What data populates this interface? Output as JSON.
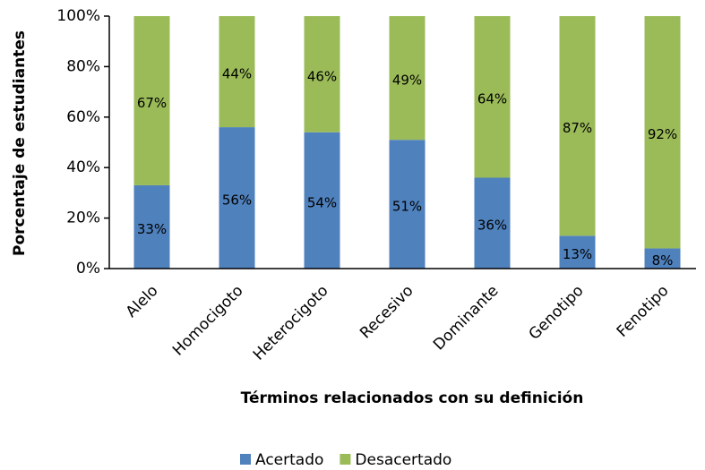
{
  "chart_data": {
    "type": "stacked_bar",
    "x_label": "Términos relacionados con su definición",
    "y_label": "Porcentaje de estudiantes",
    "categories": [
      "Alelo",
      "Homocigoto",
      "Heterocigoto",
      "Recesivo",
      "Dominante",
      "Genotipo",
      "Fenotipo"
    ],
    "series": [
      {
        "name": "Acertado",
        "color": "#4f81bd",
        "values": [
          33,
          56,
          54,
          51,
          36,
          13,
          8
        ],
        "value_labels": [
          "33%",
          "56%",
          "54%",
          "51%",
          "36%",
          "13%",
          "8%"
        ]
      },
      {
        "name": "Desacertado",
        "color": "#9bbb59",
        "values": [
          67,
          44,
          46,
          49,
          64,
          87,
          92
        ],
        "value_labels": [
          "67%",
          "44%",
          "46%",
          "49%",
          "64%",
          "87%",
          "92%"
        ]
      }
    ],
    "ylim": [
      0,
      100
    ],
    "yticks": [
      {
        "value": 0,
        "label": "0%"
      },
      {
        "value": 20,
        "label": "20%"
      },
      {
        "value": 40,
        "label": "40%"
      },
      {
        "value": 60,
        "label": "60%"
      },
      {
        "value": 80,
        "label": "80%"
      },
      {
        "value": 100,
        "label": "100%"
      }
    ],
    "legend": "bottom"
  }
}
